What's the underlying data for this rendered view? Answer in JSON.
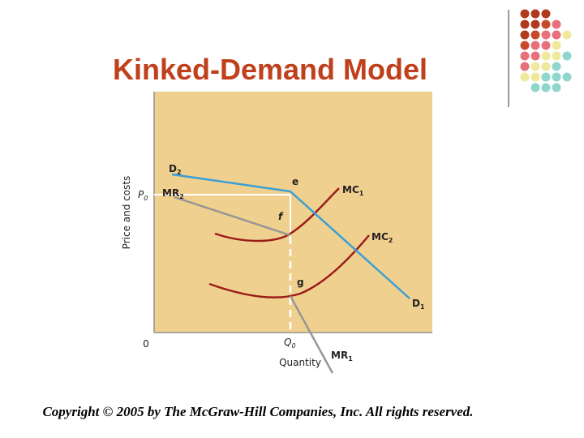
{
  "header": {
    "title": "Kinked-Demand Model"
  },
  "diagram": {
    "y_axis_label": "Price and costs",
    "x_axis_label": "Quantity",
    "origin": "0",
    "p0": {
      "text": "P",
      "sub": "0"
    },
    "q0": {
      "text": "Q",
      "sub": "0"
    },
    "d2": {
      "text": "D",
      "sub": "2"
    },
    "mr2": {
      "text": "MR",
      "sub": "2"
    },
    "mc1": {
      "text": "MC",
      "sub": "1"
    },
    "mc2": {
      "text": "MC",
      "sub": "2"
    },
    "d1": {
      "text": "D",
      "sub": "1"
    },
    "mr1": {
      "text": "MR",
      "sub": "1"
    },
    "point_e": "e",
    "point_f": "f",
    "point_g": "g"
  },
  "footer": {
    "copyright": "Copyright © 2005 by The McGraw-Hill Companies, Inc. All rights reserved."
  }
}
